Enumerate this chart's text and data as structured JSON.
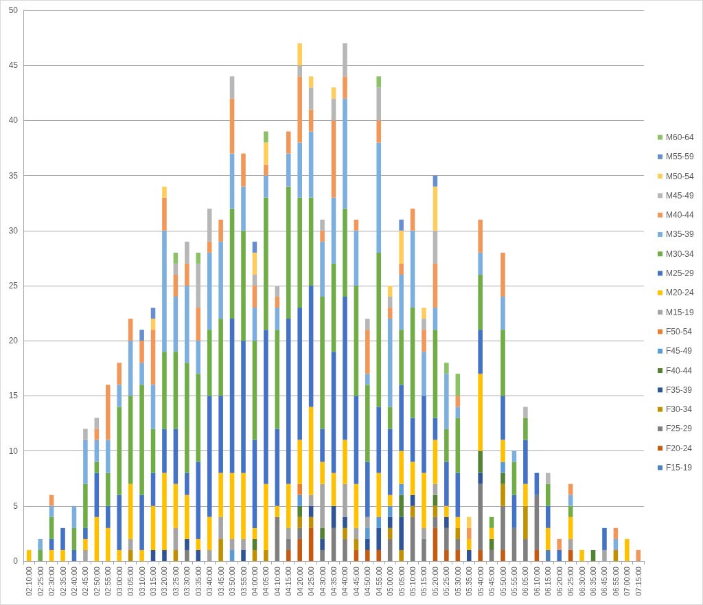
{
  "chart_data": {
    "type": "bar",
    "stacked": true,
    "grid": "y",
    "legend": "right",
    "ylim": [
      0,
      50
    ],
    "yticks": [
      0,
      5,
      10,
      15,
      20,
      25,
      30,
      35,
      40,
      45,
      50
    ],
    "categories": [
      "02:10:00",
      "02:25:00",
      "02:30:00",
      "02:35:00",
      "02:40:00",
      "02:45:00",
      "02:50:00",
      "02:55:00",
      "03:00:00",
      "03:05:00",
      "03:10:00",
      "03:15:00",
      "03:20:00",
      "03:25:00",
      "03:30:00",
      "03:35:00",
      "03:40:00",
      "03:45:00",
      "03:50:00",
      "03:55:00",
      "04:00:00",
      "04:05:00",
      "04:10:00",
      "04:15:00",
      "04:20:00",
      "04:25:00",
      "04:30:00",
      "04:35:00",
      "04:40:00",
      "04:45:00",
      "04:50:00",
      "04:55:00",
      "05:00:00",
      "05:05:00",
      "05:10:00",
      "05:15:00",
      "05:20:00",
      "05:25:00",
      "05:30:00",
      "05:35:00",
      "05:40:00",
      "05:45:00",
      "05:50:00",
      "05:55:00",
      "06:05:00",
      "06:10:00",
      "06:15:00",
      "06:20:00",
      "06:25:00",
      "06:30:00",
      "06:35:00",
      "06:45:00",
      "06:55:00",
      "07:00:00",
      "07:15:00"
    ],
    "series": [
      {
        "name": "F15-19",
        "color": "#4f81bd",
        "values": [
          null,
          null,
          null,
          null,
          null,
          null,
          null,
          null,
          null,
          null,
          null,
          null,
          null,
          null,
          null,
          null,
          null,
          null,
          null,
          null,
          null,
          null,
          null,
          null,
          null,
          null,
          null,
          null,
          null,
          null,
          null,
          null,
          null,
          null,
          null,
          null,
          null,
          null,
          null,
          null,
          null,
          null,
          null,
          null,
          null,
          null,
          1,
          null,
          null,
          null,
          null,
          null,
          null,
          null,
          null
        ]
      },
      {
        "name": "F20-24",
        "color": "#c55a11",
        "values": [
          null,
          null,
          null,
          null,
          null,
          null,
          null,
          null,
          null,
          null,
          null,
          null,
          null,
          null,
          null,
          null,
          null,
          null,
          null,
          null,
          null,
          null,
          null,
          1,
          2,
          3,
          null,
          null,
          null,
          1,
          1,
          1,
          null,
          null,
          null,
          null,
          3,
          1,
          1,
          null,
          1,
          null,
          1,
          null,
          null,
          1,
          null,
          null,
          1,
          null,
          null,
          null,
          null,
          null,
          null
        ]
      },
      {
        "name": "F25-29",
        "color": "#7f7f7f",
        "values": [
          null,
          null,
          null,
          null,
          null,
          null,
          null,
          null,
          null,
          null,
          null,
          null,
          null,
          null,
          1,
          null,
          null,
          null,
          null,
          null,
          null,
          null,
          4,
          1,
          1,
          null,
          1,
          3,
          2,
          null,
          null,
          null,
          2,
          null,
          4,
          2,
          1,
          2,
          1,
          null,
          6,
          1,
          4,
          3,
          2,
          5,
          null,
          null,
          null,
          null,
          null,
          null,
          null,
          null,
          null
        ]
      },
      {
        "name": "F30-34",
        "color": "#bf9000",
        "values": [
          null,
          null,
          null,
          null,
          null,
          null,
          null,
          null,
          null,
          1,
          null,
          null,
          null,
          1,
          null,
          null,
          null,
          2,
          null,
          null,
          1,
          1,
          null,
          null,
          1,
          1,
          null,
          null,
          1,
          1,
          null,
          null,
          1,
          1,
          1,
          null,
          1,
          null,
          1,
          null,
          null,
          null,
          2,
          null,
          3,
          null,
          null,
          null,
          null,
          null,
          null,
          null,
          1,
          null,
          null
        ]
      },
      {
        "name": "F35-39",
        "color": "#2f5597",
        "values": [
          null,
          null,
          null,
          null,
          null,
          null,
          null,
          null,
          null,
          null,
          null,
          1,
          1,
          null,
          1,
          1,
          null,
          null,
          null,
          1,
          null,
          null,
          null,
          null,
          null,
          1,
          1,
          2,
          1,
          null,
          1,
          2,
          1,
          3,
          1,
          null,
          null,
          1,
          null,
          1,
          1,
          null,
          null,
          null,
          null,
          null,
          null,
          null,
          null,
          null,
          null,
          null,
          null,
          null,
          null
        ]
      },
      {
        "name": "F40-44",
        "color": "#548235",
        "values": [
          null,
          null,
          null,
          null,
          null,
          null,
          null,
          null,
          null,
          null,
          null,
          null,
          null,
          null,
          null,
          null,
          null,
          null,
          null,
          null,
          1,
          null,
          null,
          null,
          1,
          null,
          1,
          null,
          null,
          null,
          null,
          null,
          null,
          2,
          null,
          null,
          1,
          null,
          null,
          null,
          2,
          1,
          1,
          null,
          null,
          null,
          null,
          null,
          null,
          null,
          1,
          null,
          null,
          null,
          null
        ]
      },
      {
        "name": "F45-49",
        "color": "#5b9bd5",
        "values": [
          null,
          null,
          null,
          null,
          null,
          null,
          null,
          null,
          null,
          null,
          null,
          null,
          null,
          null,
          null,
          null,
          null,
          null,
          1,
          null,
          null,
          null,
          null,
          null,
          1,
          null,
          null,
          null,
          null,
          null,
          1,
          1,
          1,
          1,
          null,
          null,
          null,
          null,
          null,
          null,
          null,
          null,
          1,
          null,
          null,
          null,
          null,
          null,
          null,
          null,
          null,
          null,
          null,
          null,
          null
        ]
      },
      {
        "name": "F50-54",
        "color": "#ed7d31",
        "values": [
          null,
          null,
          null,
          null,
          null,
          null,
          null,
          null,
          null,
          null,
          null,
          null,
          null,
          null,
          null,
          null,
          null,
          null,
          null,
          null,
          null,
          null,
          null,
          null,
          1,
          null,
          null,
          null,
          null,
          null,
          null,
          null,
          null,
          null,
          null,
          null,
          null,
          null,
          null,
          null,
          null,
          null,
          null,
          null,
          null,
          null,
          null,
          null,
          null,
          null,
          null,
          null,
          null,
          null,
          null
        ]
      },
      {
        "name": "M15-19",
        "color": "#a5a5a5",
        "values": [
          null,
          null,
          null,
          null,
          null,
          1,
          null,
          null,
          null,
          1,
          null,
          null,
          null,
          2,
          null,
          null,
          1,
          2,
          1,
          1,
          null,
          null,
          null,
          1,
          null,
          1,
          4,
          null,
          3,
          1,
          1,
          null,
          null,
          null,
          null,
          1,
          1,
          null,
          null,
          null,
          null,
          null,
          null,
          null,
          null,
          null,
          null,
          null,
          1,
          null,
          null,
          1,
          null,
          null,
          null
        ]
      },
      {
        "name": "M20-24",
        "color": "#ffc000",
        "values": [
          1,
          null,
          1,
          1,
          null,
          1,
          4,
          3,
          1,
          5,
          1,
          4,
          7,
          4,
          4,
          1,
          3,
          4,
          6,
          6,
          1,
          6,
          1,
          4,
          4,
          8,
          2,
          3,
          4,
          4,
          null,
          4,
          1,
          3,
          3,
          5,
          4,
          1,
          1,
          1,
          7,
          1,
          2,
          null,
          2,
          null,
          2,
          null,
          2,
          1,
          null,
          null,
          null,
          2,
          null
        ]
      },
      {
        "name": "M25-29",
        "color": "#4472c4",
        "values": [
          null,
          null,
          1,
          2,
          1,
          1,
          4,
          2,
          5,
          null,
          5,
          3,
          4,
          5,
          2,
          7,
          11,
          7,
          14,
          12,
          8,
          14,
          7,
          15,
          12,
          11,
          3,
          11,
          13,
          8,
          5,
          6,
          6,
          6,
          4,
          7,
          2,
          4,
          4,
          null,
          4,
          null,
          4,
          3,
          4,
          2,
          2,
          1,
          null,
          null,
          null,
          2,
          null,
          null,
          null
        ]
      },
      {
        "name": "M30-34",
        "color": "#70ad47",
        "values": [
          null,
          1,
          2,
          null,
          2,
          4,
          1,
          3,
          8,
          8,
          10,
          4,
          7,
          7,
          10,
          8,
          6,
          7,
          10,
          10,
          9,
          12,
          9,
          12,
          10,
          8,
          12,
          8,
          8,
          10,
          7,
          14,
          2,
          5,
          10,
          null,
          8,
          3,
          5,
          null,
          5,
          1,
          6,
          3,
          2,
          null,
          2,
          null,
          1,
          null,
          null,
          null,
          null,
          null,
          null
        ]
      },
      {
        "name": "M35-39",
        "color": "#7cafdd",
        "values": [
          null,
          1,
          1,
          null,
          2,
          4,
          2,
          3,
          2,
          5,
          2,
          4,
          11,
          5,
          7,
          3,
          7,
          7,
          5,
          4,
          3,
          2,
          2,
          3,
          5,
          6,
          5,
          6,
          10,
          5,
          1,
          10,
          8,
          5,
          7,
          4,
          2,
          5,
          1,
          null,
          2,
          null,
          3,
          1,
          null,
          null,
          null,
          null,
          1,
          null,
          null,
          null,
          1,
          null,
          null
        ]
      },
      {
        "name": "M40-44",
        "color": "#f1975a",
        "values": [
          null,
          null,
          1,
          null,
          null,
          null,
          1,
          5,
          2,
          2,
          2,
          5,
          3,
          2,
          2,
          3,
          1,
          2,
          5,
          3,
          2,
          1,
          1,
          2,
          6,
          2,
          1,
          7,
          2,
          1,
          4,
          2,
          1,
          1,
          2,
          2,
          4,
          null,
          1,
          1,
          3,
          null,
          4,
          null,
          null,
          null,
          null,
          1,
          1,
          null,
          null,
          null,
          1,
          null,
          1
        ]
      },
      {
        "name": "M45-49",
        "color": "#b7b7b7",
        "values": [
          null,
          null,
          null,
          null,
          null,
          1,
          1,
          null,
          null,
          null,
          null,
          null,
          null,
          1,
          2,
          4,
          3,
          null,
          2,
          null,
          1,
          null,
          1,
          null,
          1,
          2,
          1,
          2,
          3,
          null,
          1,
          3,
          1,
          null,
          null,
          1,
          3,
          null,
          null,
          null,
          null,
          null,
          null,
          null,
          1,
          null,
          1,
          null,
          null,
          null,
          null,
          null,
          null,
          null,
          null
        ]
      },
      {
        "name": "M50-54",
        "color": "#ffcd5b",
        "values": [
          null,
          null,
          null,
          null,
          null,
          null,
          null,
          null,
          null,
          null,
          null,
          1,
          1,
          null,
          null,
          null,
          null,
          null,
          null,
          null,
          2,
          2,
          null,
          null,
          2,
          1,
          null,
          1,
          null,
          null,
          null,
          null,
          1,
          3,
          null,
          1,
          4,
          null,
          null,
          1,
          null,
          null,
          null,
          null,
          null,
          null,
          null,
          null,
          null,
          null,
          null,
          null,
          null,
          null,
          null
        ]
      },
      {
        "name": "M55-59",
        "color": "#698ed0",
        "values": [
          null,
          null,
          null,
          null,
          null,
          null,
          null,
          null,
          null,
          null,
          1,
          1,
          null,
          null,
          null,
          null,
          null,
          null,
          null,
          null,
          1,
          null,
          null,
          null,
          null,
          null,
          null,
          null,
          null,
          null,
          null,
          null,
          null,
          1,
          null,
          null,
          1,
          null,
          null,
          null,
          null,
          null,
          null,
          null,
          null,
          null,
          null,
          null,
          null,
          null,
          null,
          null,
          null,
          null,
          null
        ]
      },
      {
        "name": "M60-64",
        "color": "#8cc168",
        "values": [
          null,
          null,
          null,
          null,
          null,
          null,
          null,
          null,
          null,
          null,
          null,
          null,
          null,
          1,
          null,
          1,
          null,
          null,
          null,
          null,
          null,
          1,
          null,
          null,
          null,
          null,
          null,
          null,
          null,
          null,
          null,
          1,
          null,
          null,
          null,
          null,
          null,
          1,
          2,
          null,
          null,
          null,
          null,
          null,
          null,
          null,
          null,
          null,
          null,
          null,
          null,
          null,
          null,
          null,
          null
        ]
      }
    ]
  }
}
